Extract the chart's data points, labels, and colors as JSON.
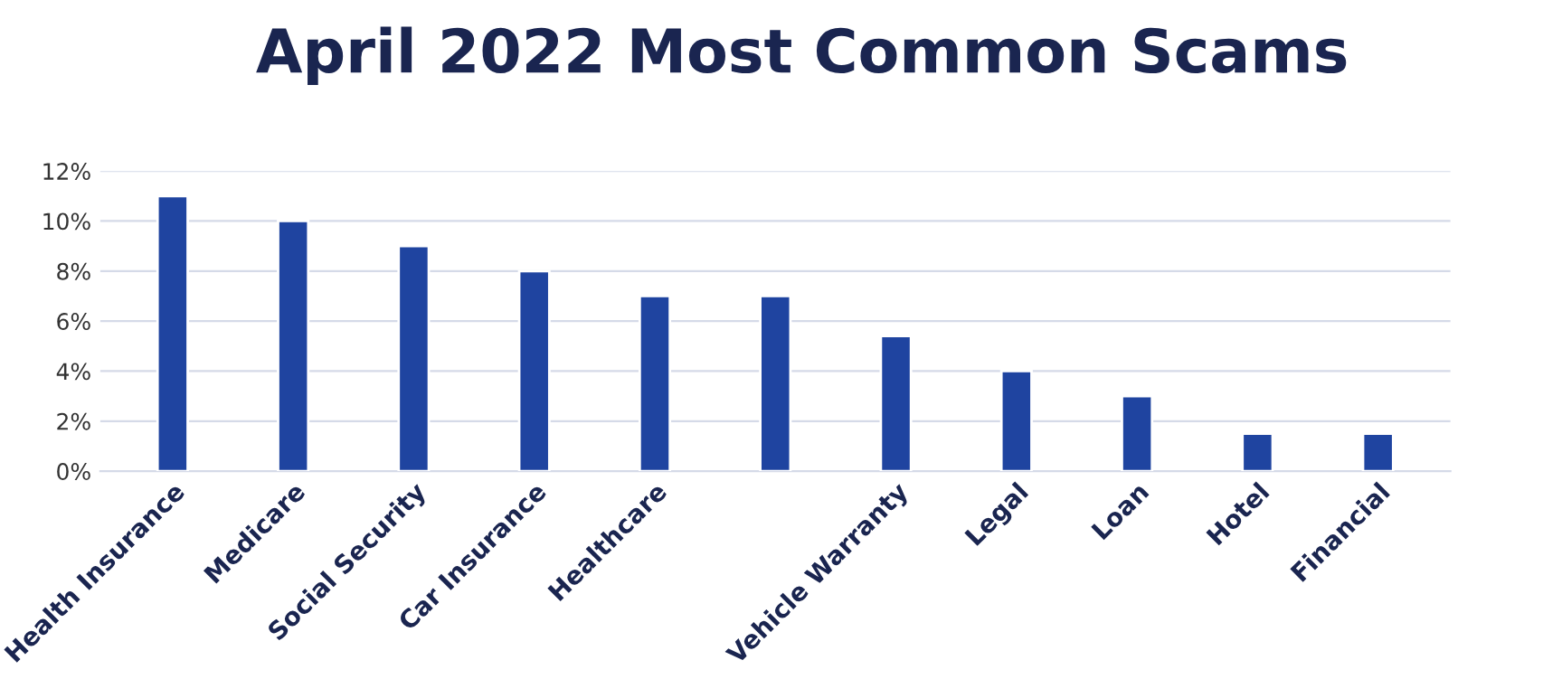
{
  "chart_data": {
    "type": "bar",
    "title": "April 2022 Most Common Scams",
    "categories": [
      "Health Insurance",
      "Medicare",
      "Social Security",
      "Car Insurance",
      "Healthcare",
      null,
      "Vehicle Warranty",
      "Legal",
      "Loan",
      "Hotel",
      "Financial"
    ],
    "values": [
      11,
      10,
      9,
      8,
      7,
      7,
      5.4,
      4,
      3,
      1.5,
      1.5
    ],
    "color": "#1f44a0",
    "ylim": [
      0,
      12
    ],
    "yticks": [
      {
        "value": 0,
        "label": "0%"
      },
      {
        "value": 2,
        "label": "2%"
      },
      {
        "value": 4,
        "label": "4%"
      },
      {
        "value": 6,
        "label": "6%"
      },
      {
        "value": 8,
        "label": "8%"
      },
      {
        "value": 10,
        "label": "10%"
      },
      {
        "value": 12,
        "label": "12%"
      }
    ],
    "grid": "y"
  }
}
